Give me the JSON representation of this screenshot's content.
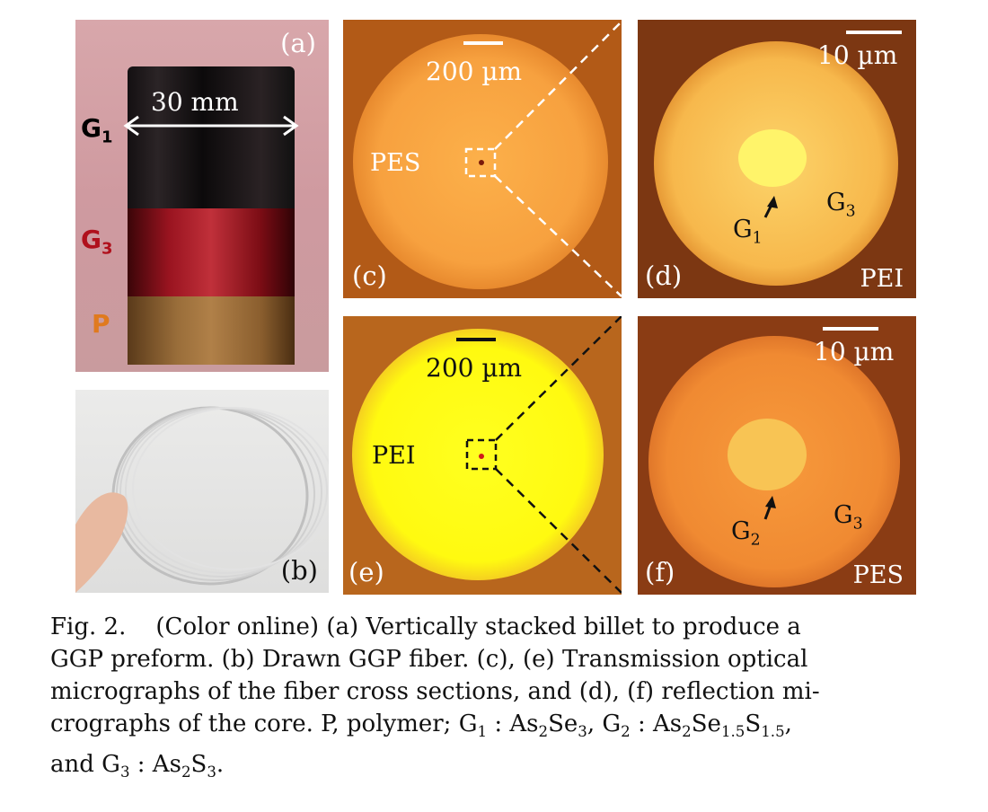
{
  "panels": {
    "a": {
      "label": "(a)",
      "scale_text": "30 mm",
      "labels": {
        "g1": "G",
        "g1_sub": "1",
        "g3": "G",
        "g3_sub": "3",
        "p": "P"
      }
    },
    "b": {
      "label": "(b)"
    },
    "c": {
      "label": "(c)",
      "scale_text": "200 µm",
      "material": "PES"
    },
    "d": {
      "label": "(d)",
      "scale_text": "10 µm",
      "material": "PEI",
      "core": "G",
      "core_sub": "1",
      "cladding": "G",
      "cladding_sub": "3"
    },
    "e": {
      "label": "(e)",
      "scale_text": "200 µm",
      "material": "PEI"
    },
    "f": {
      "label": "(f)",
      "scale_text": "10 µm",
      "material": "PES",
      "core": "G",
      "core_sub": "2",
      "cladding": "G",
      "cladding_sub": "3"
    }
  },
  "caption": {
    "fig_label": "Fig. 2.",
    "line1": "(Color online) (a) Vertically stacked billet to produce a",
    "line2": "GGP preform. (b) Drawn GGP fiber. (c), (e) Transmission optical",
    "line3": "micrographs of the fiber cross sections, and (d), (f) reflection mi-",
    "line4a": "crographs of the core. P, polymer; G",
    "g1_sub": "1",
    "line4b": " : As",
    "s1": "2",
    "line4c": "Se",
    "s2": "3",
    "line4d": ", G",
    "g2_sub": "2",
    "line4e": " : As",
    "s3": "2",
    "line4f": "Se",
    "s4": "1.5",
    "line4g": "S",
    "s5": "1.5",
    "line4h": ",",
    "line5a": "and G",
    "g3_sub": "3",
    "line5b": " : As",
    "s6": "2",
    "line5c": "S",
    "s7": "3",
    "line5d": "."
  }
}
